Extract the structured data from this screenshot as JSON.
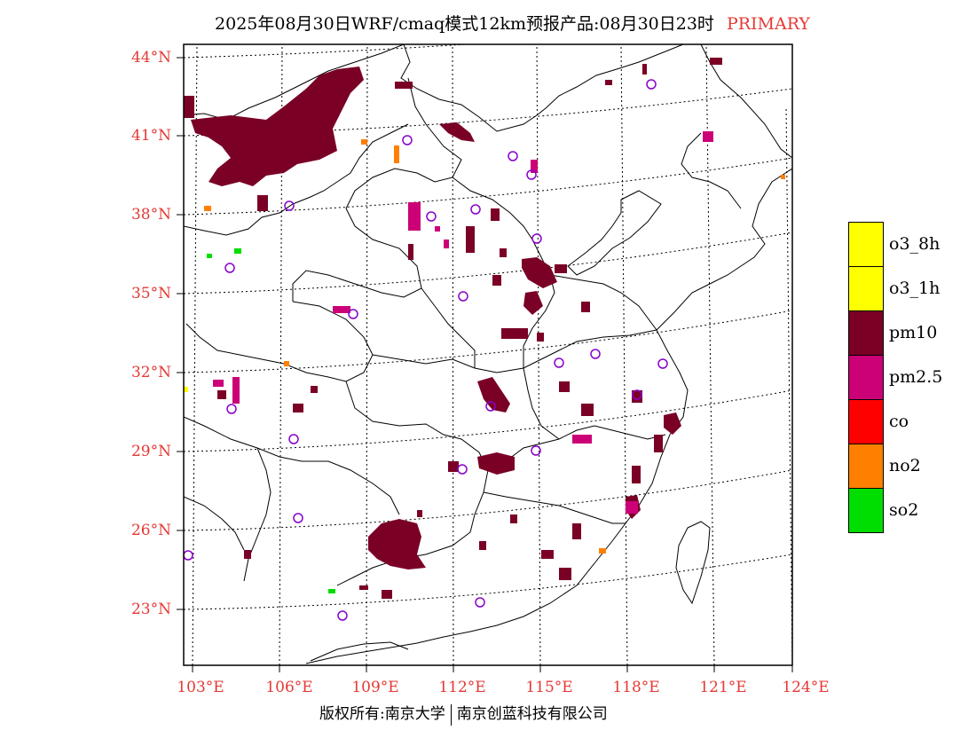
{
  "title": {
    "main": "2025年08月30日WRF/cmaq模式12km预报产品:08月30日23时",
    "tag": "PRIMARY"
  },
  "colors": {
    "o3_8h": "#ffff00",
    "o3_1h": "#ffff00",
    "pm10": "#7a0026",
    "pm25": "#cc0077",
    "co": "#ff0000",
    "no2": "#ff7f00",
    "so2": "#00dd00",
    "axis_label": "#e53935",
    "station": "#8800cc"
  },
  "map": {
    "lat_labels": [
      "44°N",
      "41°N",
      "38°N",
      "35°N",
      "32°N",
      "29°N",
      "26°N",
      "23°N"
    ],
    "lon_labels": [
      "103°E",
      "106°E",
      "109°E",
      "112°E",
      "115°E",
      "118°E",
      "121°E",
      "124°E"
    ]
  },
  "legend": {
    "items": [
      {
        "label": "o3_8h",
        "color": "#ffff00"
      },
      {
        "label": "o3_1h",
        "color": "#ffff00"
      },
      {
        "label": "pm10",
        "color": "#7a0026"
      },
      {
        "label": "pm2.5",
        "color": "#cc0077"
      },
      {
        "label": "co",
        "color": "#ff0000"
      },
      {
        "label": "no2",
        "color": "#ff7f00"
      },
      {
        "label": "so2",
        "color": "#00dd00"
      }
    ]
  },
  "footer": {
    "left": "版权所有:南京大学",
    "right": "南京创蓝科技有限公司"
  }
}
